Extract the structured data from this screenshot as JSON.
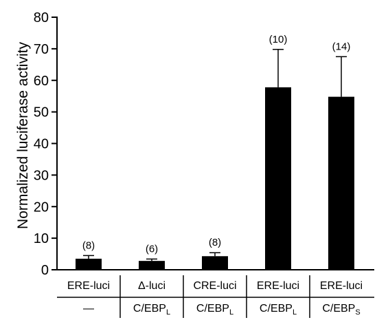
{
  "chart_data": {
    "type": "bar",
    "title": "",
    "xlabel": "",
    "ylabel": "Normalized luciferase activity",
    "ylim": [
      0,
      80
    ],
    "yticks": [
      0,
      10,
      20,
      30,
      40,
      50,
      60,
      70,
      80
    ],
    "grid": false,
    "bar_color": "#000000",
    "bars": [
      {
        "reporter": "ERE-luci",
        "cotransfected": {
          "main": "—",
          "sub": ""
        },
        "value": 3.5,
        "error": 1.0,
        "n_label": "(8)"
      },
      {
        "reporter": "Δ-luci",
        "cotransfected": {
          "main": "C/EBP",
          "sub": "L"
        },
        "value": 2.8,
        "error": 0.6,
        "n_label": "(6)"
      },
      {
        "reporter": "CRE-luci",
        "cotransfected": {
          "main": "C/EBP",
          "sub": "L"
        },
        "value": 4.3,
        "error": 1.1,
        "n_label": "(8)"
      },
      {
        "reporter": "ERE-luci",
        "cotransfected": {
          "main": "C/EBP",
          "sub": "L"
        },
        "value": 57.8,
        "error": 12.0,
        "n_label": "(10)"
      },
      {
        "reporter": "ERE-luci",
        "cotransfected": {
          "main": "C/EBP",
          "sub": "S"
        },
        "value": 54.8,
        "error": 12.7,
        "n_label": "(14)"
      }
    ]
  }
}
